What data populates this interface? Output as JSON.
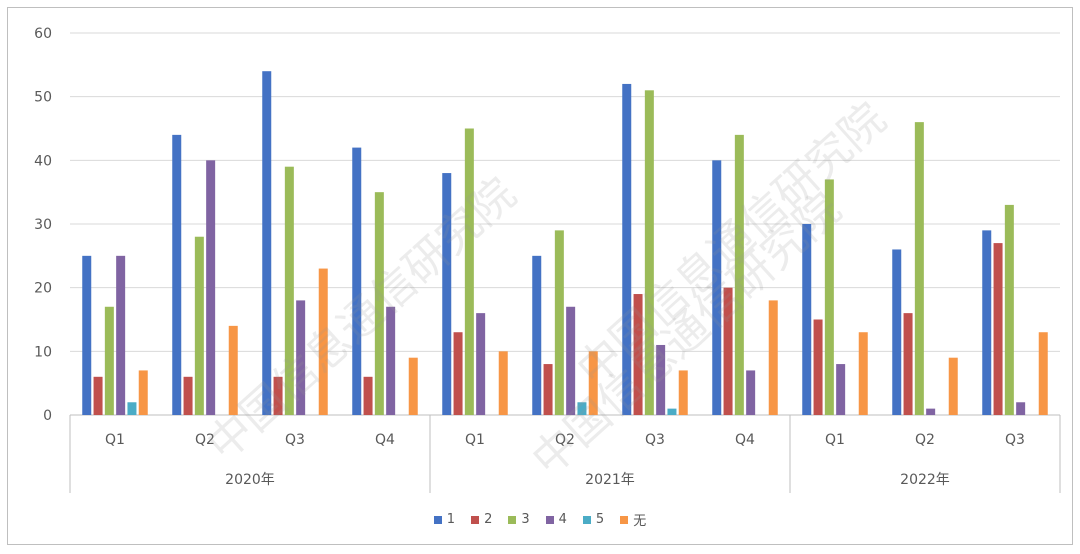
{
  "chart_data": {
    "type": "bar",
    "ylim": [
      0,
      60
    ],
    "yticks": [
      0,
      10,
      20,
      30,
      40,
      50,
      60
    ],
    "groups": [
      {
        "year": "2020年",
        "quarters": [
          "Q1",
          "Q2",
          "Q3",
          "Q4"
        ]
      },
      {
        "year": "2021年",
        "quarters": [
          "Q1",
          "Q2",
          "Q3",
          "Q4"
        ]
      },
      {
        "year": "2022年",
        "quarters": [
          "Q1",
          "Q2",
          "Q3"
        ]
      }
    ],
    "series": [
      {
        "name": "1",
        "color": "#4472c4",
        "values": [
          25,
          44,
          54,
          42,
          38,
          25,
          52,
          40,
          30,
          26,
          29
        ]
      },
      {
        "name": "2",
        "color": "#c0504d",
        "values": [
          6,
          6,
          6,
          6,
          13,
          8,
          19,
          20,
          15,
          16,
          27
        ]
      },
      {
        "name": "3",
        "color": "#9bbb59",
        "values": [
          17,
          28,
          39,
          35,
          45,
          29,
          51,
          44,
          37,
          46,
          33
        ]
      },
      {
        "name": "4",
        "color": "#8064a2",
        "values": [
          25,
          40,
          18,
          17,
          16,
          17,
          11,
          7,
          8,
          1,
          2
        ]
      },
      {
        "name": "5",
        "color": "#4bacc6",
        "values": [
          2,
          0,
          0,
          0,
          0,
          2,
          1,
          0,
          0,
          0,
          0
        ]
      },
      {
        "name": "无",
        "color": "#f79646",
        "values": [
          7,
          14,
          23,
          9,
          10,
          10,
          7,
          18,
          13,
          9,
          13
        ]
      }
    ],
    "grid": true,
    "legend_position": "bottom"
  },
  "watermark": "中国信息通信研究院"
}
